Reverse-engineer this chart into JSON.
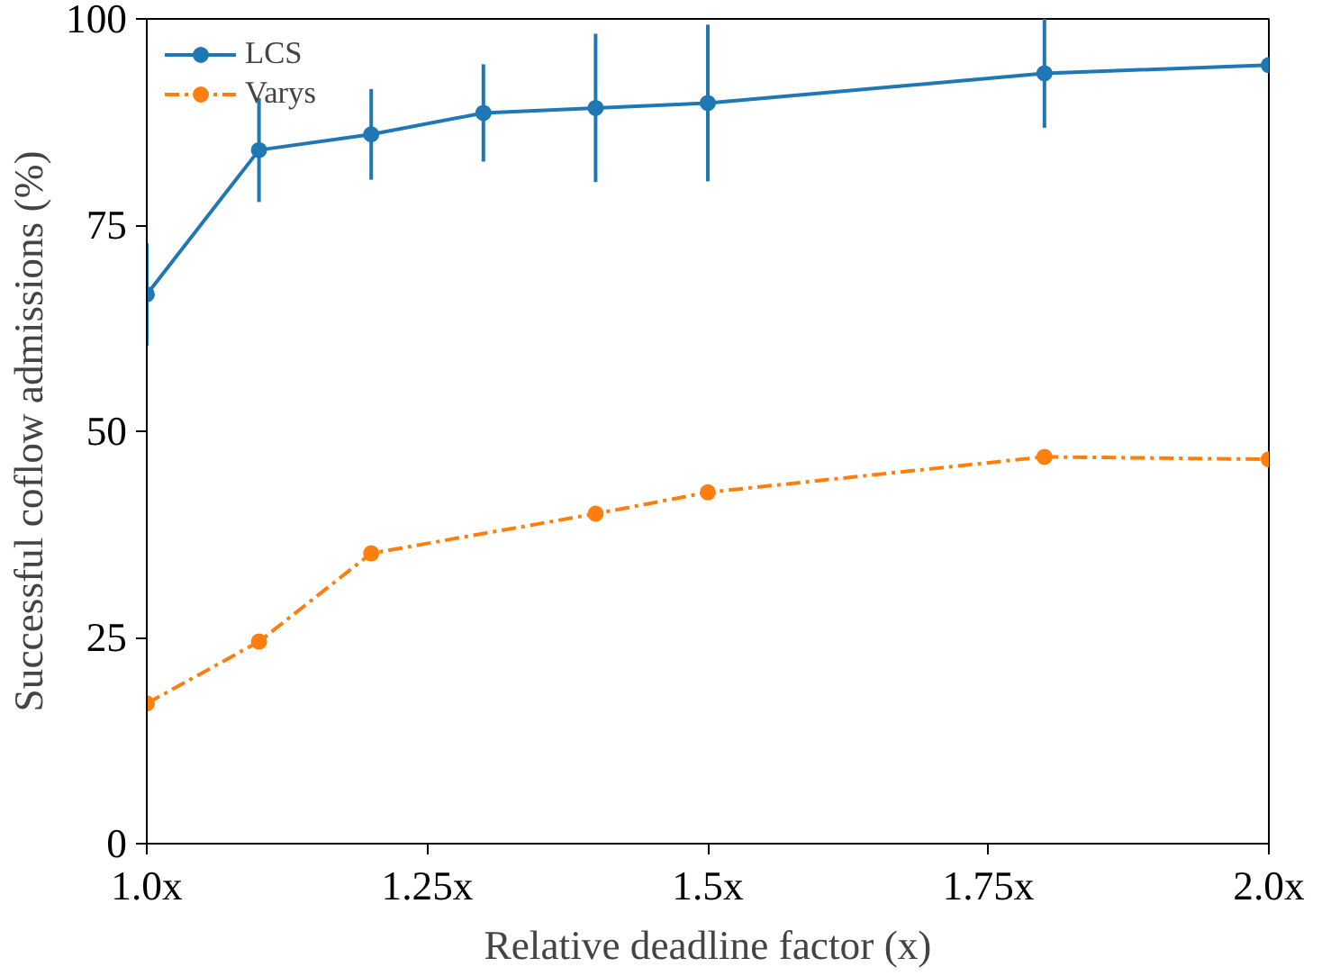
{
  "chart_data": {
    "type": "line",
    "xlabel": "Relative deadline factor (x)",
    "ylabel": "Successful coflow admissions (%)",
    "series": [
      {
        "name": "LCS",
        "color": "#1f77b4",
        "line_style": "solid",
        "x": [
          1.0,
          1.1,
          1.2,
          1.3,
          1.4,
          1.5,
          1.8,
          2.0
        ],
        "values": [
          66.6,
          84.1,
          86.0,
          88.6,
          89.2,
          89.8,
          93.4,
          94.4
        ],
        "errors": [
          6.2,
          6.3,
          5.5,
          5.9,
          9.0,
          9.5,
          6.6,
          null
        ]
      },
      {
        "name": "Varys",
        "color": "#ff7f0e",
        "line_style": "dashdot",
        "x": [
          1.0,
          1.1,
          1.2,
          1.4,
          1.5,
          1.8,
          2.0
        ],
        "values": [
          17.0,
          24.5,
          35.2,
          40.0,
          42.6,
          46.9,
          46.6
        ]
      }
    ],
    "xlim": [
      1.0,
      2.0
    ],
    "ylim": [
      0,
      100
    ],
    "xticks": [
      {
        "value": 1.0,
        "label": "1.0x"
      },
      {
        "value": 1.25,
        "label": "1.25x"
      },
      {
        "value": 1.5,
        "label": "1.5x"
      },
      {
        "value": 1.75,
        "label": "1.75x"
      },
      {
        "value": 2.0,
        "label": "2.0x"
      }
    ],
    "yticks": [
      0,
      25,
      50,
      75,
      100
    ],
    "marker": "circle",
    "grid": false,
    "legend": "top left"
  }
}
